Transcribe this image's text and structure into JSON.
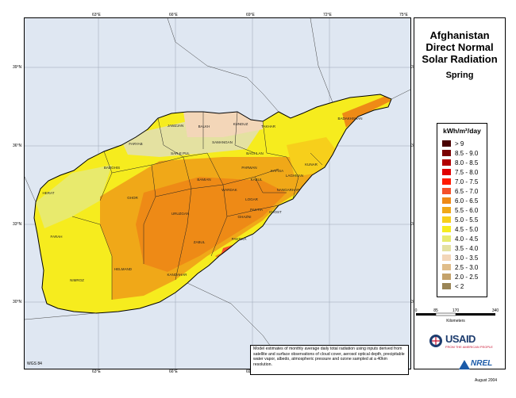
{
  "title": {
    "line1": "Afghanistan",
    "line2": "Direct Normal",
    "line3": "Solar Radiation",
    "season": "Spring"
  },
  "legend": {
    "unit": "kWh/m²/day",
    "entries": [
      {
        "label": "> 9",
        "color": "#4a0000"
      },
      {
        "label": "8.5 - 9.0",
        "color": "#7a0000"
      },
      {
        "label": "8.0 - 8.5",
        "color": "#b20000"
      },
      {
        "label": "7.5 - 8.0",
        "color": "#e00000"
      },
      {
        "label": "7.0 - 7.5",
        "color": "#ff1a00"
      },
      {
        "label": "6.5 - 7.0",
        "color": "#f4502a"
      },
      {
        "label": "6.0 - 6.5",
        "color": "#ee8a16"
      },
      {
        "label": "5.5 - 6.0",
        "color": "#f0a818"
      },
      {
        "label": "5.0 - 5.5",
        "color": "#f7cf1b"
      },
      {
        "label": "4.5 - 5.0",
        "color": "#f6ec1e"
      },
      {
        "label": "4.0 - 4.5",
        "color": "#e8ea6d"
      },
      {
        "label": "3.5 - 4.0",
        "color": "#e4e1a1"
      },
      {
        "label": "3.0 - 3.5",
        "color": "#f3d6b8"
      },
      {
        "label": "2.5 - 3.0",
        "color": "#e0bd8a"
      },
      {
        "label": "2.0 - 2.5",
        "color": "#c4a26a"
      },
      {
        "label": "< 2",
        "color": "#9a8556"
      }
    ]
  },
  "axes": {
    "lon_labels": [
      "63°E",
      "66°E",
      "69°E",
      "72°E",
      "75°E"
    ],
    "lat_labels": [
      "39°N",
      "36°N",
      "33°N",
      "30°N"
    ]
  },
  "scale": {
    "ticks": [
      "0",
      "85",
      "170",
      "340"
    ],
    "unit": "Kilometers"
  },
  "provinces": [
    "JAWZJAN",
    "BALKH",
    "KUNDUZ",
    "TAKHAR",
    "BADAKHSHAN",
    "FARYAB",
    "SAMANGAN",
    "BAGHLAN",
    "SAR-E PUL",
    "BADGHIS",
    "PARWAN",
    "KAPISA",
    "KUNAR",
    "BAMIAN",
    "KABUL",
    "NANGARHAR",
    "LAGHMAN",
    "HERAT",
    "GHOR",
    "WARDAK",
    "LOGAR",
    "PAKTIA",
    "KHOST",
    "GHAZNI",
    "URUZGAN",
    "FARAH",
    "ZABUL",
    "PAKTIKA",
    "HELMAND",
    "KANDAHAR",
    "NIMROZ"
  ],
  "note": "Model estimates of monthly average daily total radiation using inputs derived from satellite and surface observations of cloud cover, aerosol optical depth, precipitable water vapor, albedo, atmospheric pressure and ozone sampled at a 40km resolution.",
  "footer": {
    "datum": "WGS 84",
    "date": "August 2004"
  },
  "logos": {
    "usaid": "USAID",
    "usaid_sub": "FROM THE AMERICAN PEOPLE",
    "nrel": "NREL"
  }
}
